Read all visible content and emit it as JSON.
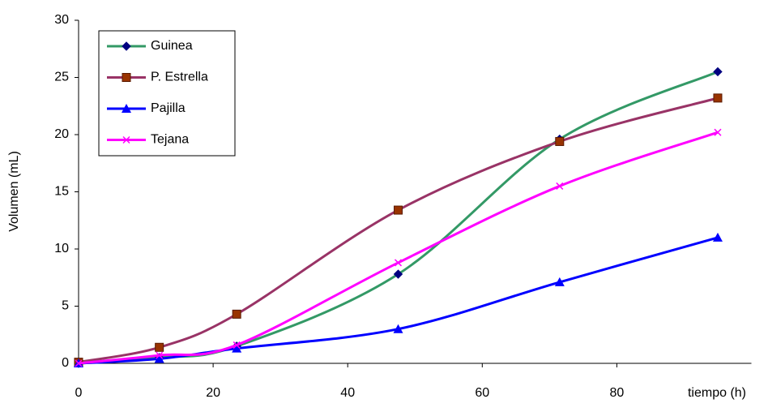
{
  "chart_data": {
    "type": "line",
    "y_label": "Volumen (mL)",
    "x_label": "tiempo (h)",
    "x": [
      0,
      12,
      23.5,
      47.5,
      71.5,
      95
    ],
    "xlim": [
      0,
      100
    ],
    "xticks": [
      0,
      20,
      40,
      60,
      80
    ],
    "ylim": [
      0,
      30
    ],
    "yticks": [
      0,
      5,
      10,
      15,
      20,
      25,
      30
    ],
    "grid": false,
    "smooth": true,
    "legend": "top-left",
    "series": [
      {
        "name": "Guinea",
        "color": "#339966",
        "marker": "diamond",
        "marker_color": "#000080",
        "values": [
          0,
          0.5,
          1.5,
          7.8,
          19.6,
          25.5
        ]
      },
      {
        "name": "P. Estrella",
        "color": "#993366",
        "marker": "square",
        "marker_color": "#993300",
        "values": [
          0.1,
          1.4,
          4.3,
          13.4,
          19.4,
          23.2
        ]
      },
      {
        "name": "Pajilla",
        "color": "#0000ff",
        "marker": "triangle",
        "marker_color": "#0000ff",
        "values": [
          0,
          0.4,
          1.3,
          3.0,
          7.1,
          11.0
        ]
      },
      {
        "name": "Tejana",
        "color": "#ff00ff",
        "marker": "cross",
        "marker_color": "#ff00ff",
        "values": [
          0,
          0.7,
          1.6,
          8.8,
          15.5,
          20.2
        ]
      }
    ]
  }
}
